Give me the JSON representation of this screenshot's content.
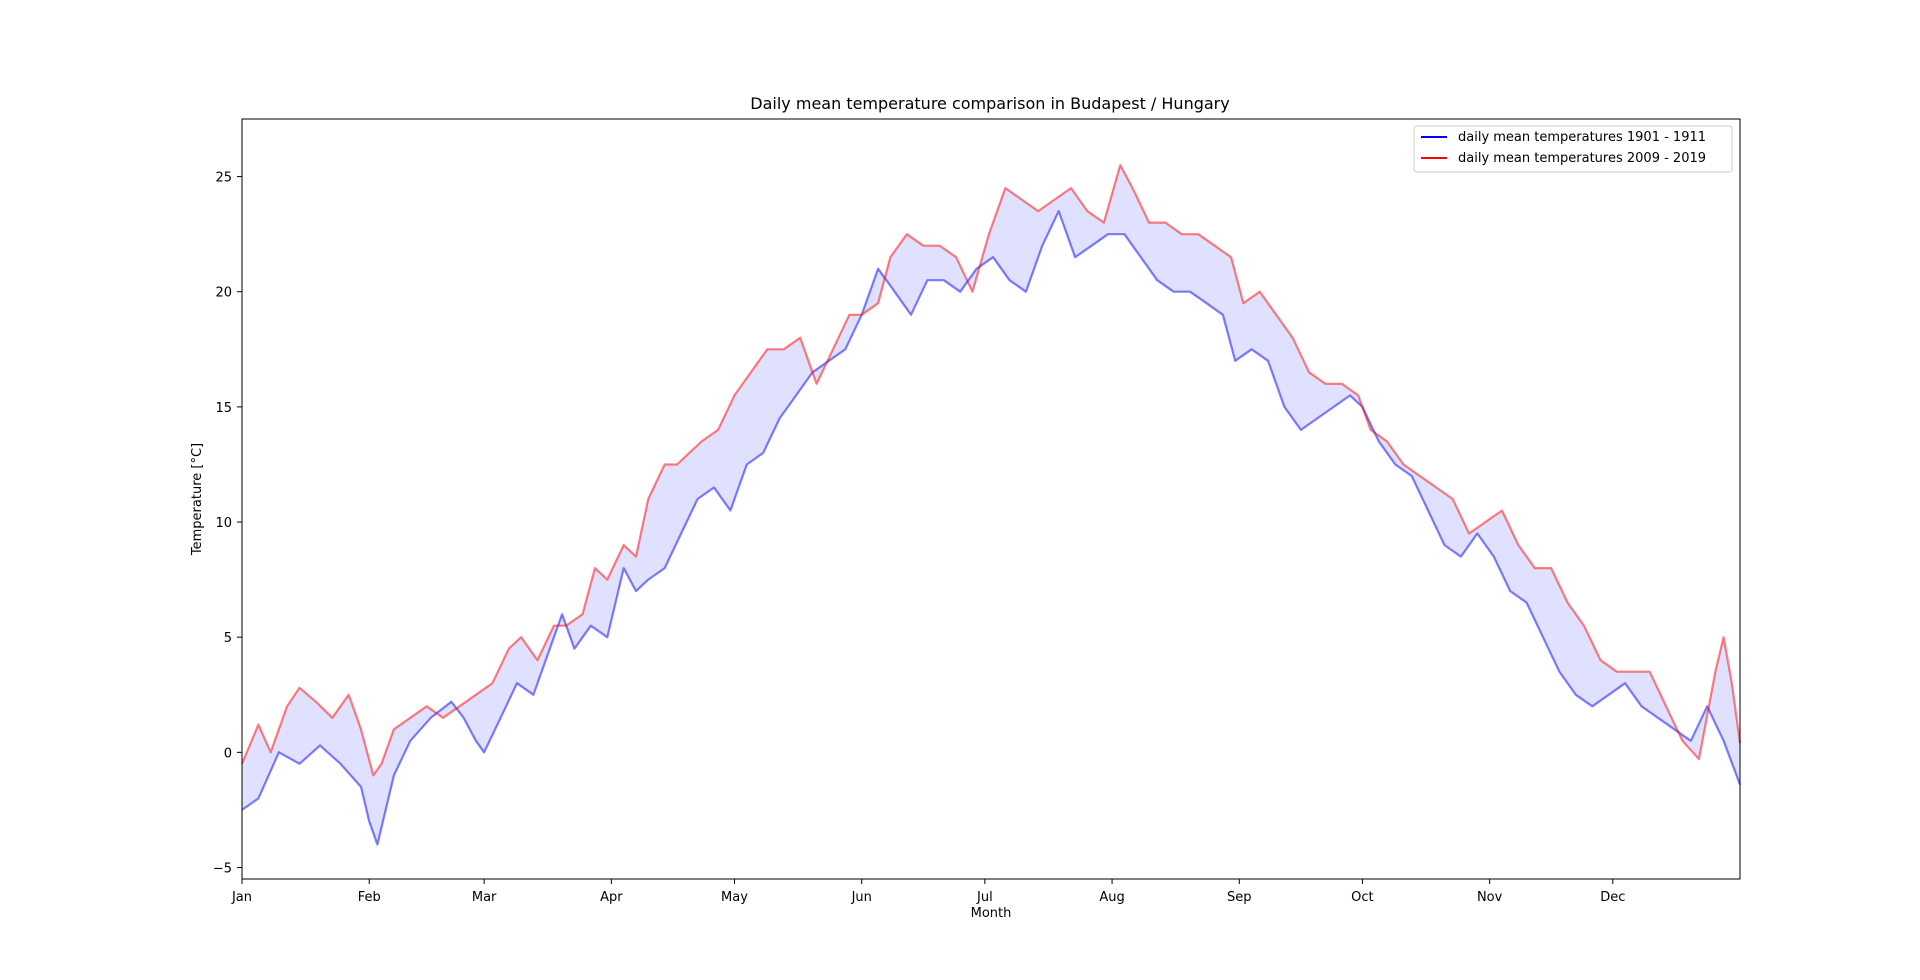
{
  "chart_data": {
    "type": "line",
    "title": "Daily mean temperature comparison in Budapest / Hungary",
    "xlabel": "Month",
    "ylabel": "Temperature [°C]",
    "xlim": [
      1,
      366
    ],
    "ylim": [
      -5.5,
      27.5
    ],
    "x_ticks": [
      {
        "label": "Jan",
        "day": 1
      },
      {
        "label": "Feb",
        "day": 32
      },
      {
        "label": "Mar",
        "day": 60
      },
      {
        "label": "Apr",
        "day": 91
      },
      {
        "label": "May",
        "day": 121
      },
      {
        "label": "Jun",
        "day": 152
      },
      {
        "label": "Jul",
        "day": 182
      },
      {
        "label": "Aug",
        "day": 213
      },
      {
        "label": "Sep",
        "day": 244
      },
      {
        "label": "Oct",
        "day": 274
      },
      {
        "label": "Nov",
        "day": 305
      },
      {
        "label": "Dec",
        "day": 335
      }
    ],
    "y_ticks": [
      -5,
      0,
      5,
      10,
      15,
      20,
      25
    ],
    "grid": false,
    "legend_position": "top-right",
    "fill_between": {
      "color": "#e0e0ff"
    },
    "series": [
      {
        "name": "daily mean temperatures 1901 - 1911",
        "color": "#0000ff",
        "points": [
          [
            1,
            -2.5
          ],
          [
            5,
            -2.0
          ],
          [
            10,
            0.0
          ],
          [
            15,
            -0.5
          ],
          [
            20,
            0.3
          ],
          [
            25,
            -0.5
          ],
          [
            30,
            -1.5
          ],
          [
            32,
            -3.0
          ],
          [
            34,
            -4.0
          ],
          [
            38,
            -1.0
          ],
          [
            42,
            0.5
          ],
          [
            47,
            1.5
          ],
          [
            52,
            2.2
          ],
          [
            55,
            1.5
          ],
          [
            58,
            0.5
          ],
          [
            60,
            0.0
          ],
          [
            64,
            1.5
          ],
          [
            68,
            3.0
          ],
          [
            72,
            2.5
          ],
          [
            76,
            4.5
          ],
          [
            79,
            6.0
          ],
          [
            82,
            4.5
          ],
          [
            86,
            5.5
          ],
          [
            90,
            5.0
          ],
          [
            94,
            8.0
          ],
          [
            97,
            7.0
          ],
          [
            100,
            7.5
          ],
          [
            104,
            8.0
          ],
          [
            108,
            9.5
          ],
          [
            112,
            11.0
          ],
          [
            116,
            11.5
          ],
          [
            120,
            10.5
          ],
          [
            124,
            12.5
          ],
          [
            128,
            13.0
          ],
          [
            132,
            14.5
          ],
          [
            136,
            15.5
          ],
          [
            140,
            16.5
          ],
          [
            144,
            17.0
          ],
          [
            148,
            17.5
          ],
          [
            152,
            19.0
          ],
          [
            156,
            21.0
          ],
          [
            160,
            20.0
          ],
          [
            164,
            19.0
          ],
          [
            168,
            20.5
          ],
          [
            172,
            20.5
          ],
          [
            176,
            20.0
          ],
          [
            180,
            21.0
          ],
          [
            184,
            21.5
          ],
          [
            188,
            20.5
          ],
          [
            192,
            20.0
          ],
          [
            196,
            22.0
          ],
          [
            200,
            23.5
          ],
          [
            204,
            21.5
          ],
          [
            208,
            22.0
          ],
          [
            212,
            22.5
          ],
          [
            216,
            22.5
          ],
          [
            220,
            21.5
          ],
          [
            224,
            20.5
          ],
          [
            228,
            20.0
          ],
          [
            232,
            20.0
          ],
          [
            236,
            19.5
          ],
          [
            240,
            19.0
          ],
          [
            243,
            17.0
          ],
          [
            247,
            17.5
          ],
          [
            251,
            17.0
          ],
          [
            255,
            15.0
          ],
          [
            259,
            14.0
          ],
          [
            263,
            14.5
          ],
          [
            267,
            15.0
          ],
          [
            271,
            15.5
          ],
          [
            274,
            15.0
          ],
          [
            278,
            13.5
          ],
          [
            282,
            12.5
          ],
          [
            286,
            12.0
          ],
          [
            290,
            10.5
          ],
          [
            294,
            9.0
          ],
          [
            298,
            8.5
          ],
          [
            302,
            9.5
          ],
          [
            306,
            8.5
          ],
          [
            310,
            7.0
          ],
          [
            314,
            6.5
          ],
          [
            318,
            5.0
          ],
          [
            322,
            3.5
          ],
          [
            326,
            2.5
          ],
          [
            330,
            2.0
          ],
          [
            334,
            2.5
          ],
          [
            338,
            3.0
          ],
          [
            342,
            2.0
          ],
          [
            346,
            1.5
          ],
          [
            350,
            1.0
          ],
          [
            354,
            0.5
          ],
          [
            358,
            2.0
          ],
          [
            362,
            0.5
          ],
          [
            366,
            -1.4
          ]
        ]
      },
      {
        "name": "daily mean temperatures 2009 - 2019",
        "color": "#ff0000",
        "points": [
          [
            1,
            -0.5
          ],
          [
            5,
            1.2
          ],
          [
            8,
            0.0
          ],
          [
            12,
            2.0
          ],
          [
            15,
            2.8
          ],
          [
            19,
            2.2
          ],
          [
            23,
            1.5
          ],
          [
            27,
            2.5
          ],
          [
            30,
            1.0
          ],
          [
            33,
            -1.0
          ],
          [
            35,
            -0.5
          ],
          [
            38,
            1.0
          ],
          [
            42,
            1.5
          ],
          [
            46,
            2.0
          ],
          [
            50,
            1.5
          ],
          [
            54,
            2.0
          ],
          [
            58,
            2.5
          ],
          [
            62,
            3.0
          ],
          [
            66,
            4.5
          ],
          [
            69,
            5.0
          ],
          [
            73,
            4.0
          ],
          [
            77,
            5.5
          ],
          [
            80,
            5.5
          ],
          [
            84,
            6.0
          ],
          [
            87,
            8.0
          ],
          [
            90,
            7.5
          ],
          [
            94,
            9.0
          ],
          [
            97,
            8.5
          ],
          [
            100,
            11.0
          ],
          [
            104,
            12.5
          ],
          [
            107,
            12.5
          ],
          [
            110,
            13.0
          ],
          [
            113,
            13.5
          ],
          [
            117,
            14.0
          ],
          [
            121,
            15.5
          ],
          [
            125,
            16.5
          ],
          [
            129,
            17.5
          ],
          [
            133,
            17.5
          ],
          [
            137,
            18.0
          ],
          [
            141,
            16.0
          ],
          [
            145,
            17.5
          ],
          [
            149,
            19.0
          ],
          [
            152,
            19.0
          ],
          [
            156,
            19.5
          ],
          [
            159,
            21.5
          ],
          [
            163,
            22.5
          ],
          [
            167,
            22.0
          ],
          [
            171,
            22.0
          ],
          [
            175,
            21.5
          ],
          [
            179,
            20.0
          ],
          [
            183,
            22.5
          ],
          [
            187,
            24.5
          ],
          [
            191,
            24.0
          ],
          [
            195,
            23.5
          ],
          [
            199,
            24.0
          ],
          [
            203,
            24.5
          ],
          [
            207,
            23.5
          ],
          [
            211,
            23.0
          ],
          [
            215,
            25.5
          ],
          [
            218,
            24.5
          ],
          [
            222,
            23.0
          ],
          [
            226,
            23.0
          ],
          [
            230,
            22.5
          ],
          [
            234,
            22.5
          ],
          [
            238,
            22.0
          ],
          [
            242,
            21.5
          ],
          [
            245,
            19.5
          ],
          [
            249,
            20.0
          ],
          [
            253,
            19.0
          ],
          [
            257,
            18.0
          ],
          [
            261,
            16.5
          ],
          [
            265,
            16.0
          ],
          [
            269,
            16.0
          ],
          [
            273,
            15.5
          ],
          [
            276,
            14.0
          ],
          [
            280,
            13.5
          ],
          [
            284,
            12.5
          ],
          [
            288,
            12.0
          ],
          [
            292,
            11.5
          ],
          [
            296,
            11.0
          ],
          [
            300,
            9.5
          ],
          [
            304,
            10.0
          ],
          [
            308,
            10.5
          ],
          [
            312,
            9.0
          ],
          [
            316,
            8.0
          ],
          [
            320,
            8.0
          ],
          [
            324,
            6.5
          ],
          [
            328,
            5.5
          ],
          [
            332,
            4.0
          ],
          [
            336,
            3.5
          ],
          [
            340,
            3.5
          ],
          [
            344,
            3.5
          ],
          [
            348,
            2.0
          ],
          [
            352,
            0.5
          ],
          [
            356,
            -0.3
          ],
          [
            360,
            3.5
          ],
          [
            362,
            5.0
          ],
          [
            364,
            3.0
          ],
          [
            366,
            0.4
          ]
        ]
      }
    ]
  }
}
